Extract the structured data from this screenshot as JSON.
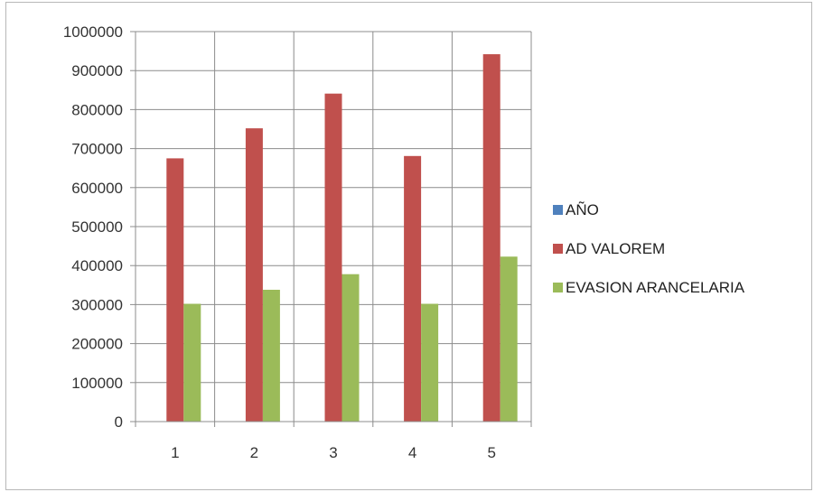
{
  "chart_data": {
    "type": "bar",
    "categories": [
      "1",
      "2",
      "3",
      "4",
      "5"
    ],
    "series": [
      {
        "name": "AÑO",
        "color": "#4f81bd",
        "values": [
          0,
          0,
          0,
          0,
          0
        ]
      },
      {
        "name": "AD VALOREM",
        "color": "#c0504d",
        "values": [
          675000,
          752000,
          841000,
          681000,
          942000
        ]
      },
      {
        "name": "EVASION ARANCELARIA",
        "color": "#9bbb59",
        "values": [
          302000,
          338000,
          378000,
          302000,
          423000
        ]
      }
    ],
    "ylim": [
      0,
      1000000
    ],
    "yticks": [
      "0",
      "100000",
      "200000",
      "300000",
      "400000",
      "500000",
      "600000",
      "700000",
      "800000",
      "900000",
      "1000000"
    ],
    "grid": true,
    "legend_position": "right",
    "title": "",
    "xlabel": "",
    "ylabel": ""
  }
}
